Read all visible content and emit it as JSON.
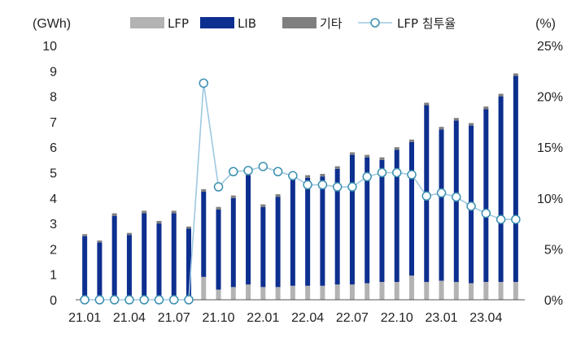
{
  "chart_data": {
    "type": "bar",
    "stacked": true,
    "secondary_line": true,
    "y_left_unit": "(GWh)",
    "y_right_unit": "(%)",
    "ylim_left": [
      0,
      10
    ],
    "ylim_right": [
      0,
      25
    ],
    "y_left_ticks": [
      "0",
      "1",
      "2",
      "3",
      "4",
      "5",
      "6",
      "7",
      "8",
      "9",
      "10"
    ],
    "y_right_ticks": [
      "0%",
      "5%",
      "10%",
      "15%",
      "20%",
      "25%"
    ],
    "x_tick_labels": [
      "21.01",
      "21.04",
      "21.07",
      "21.10",
      "22.01",
      "22.04",
      "22.07",
      "22.10",
      "23.01",
      "23.04"
    ],
    "categories": [
      "21.01",
      "21.02",
      "21.03",
      "21.04",
      "21.05",
      "21.06",
      "21.07",
      "21.08",
      "21.09",
      "21.10",
      "21.11",
      "21.12",
      "22.01",
      "22.02",
      "22.03",
      "22.04",
      "22.05",
      "22.06",
      "22.07",
      "22.08",
      "22.09",
      "22.10",
      "22.11",
      "22.12",
      "23.01",
      "23.02",
      "23.03",
      "23.04",
      "23.05",
      "23.06"
    ],
    "legend": [
      "LFP",
      "LIB",
      "기타",
      "LFP 침투율"
    ],
    "series": [
      {
        "name": "LFP",
        "axis": "left",
        "color": "#b3b3b3",
        "values": [
          0,
          0,
          0,
          0,
          0,
          0,
          0,
          0,
          0.9,
          0.4,
          0.5,
          0.6,
          0.5,
          0.5,
          0.55,
          0.55,
          0.55,
          0.6,
          0.6,
          0.65,
          0.7,
          0.7,
          0.95,
          0.7,
          0.75,
          0.7,
          0.65,
          0.7,
          0.7,
          0.7
        ]
      },
      {
        "name": "LIB",
        "axis": "left",
        "color": "#0d2f8f",
        "values": [
          2.5,
          2.25,
          3.3,
          2.55,
          3.4,
          3.0,
          3.4,
          2.8,
          3.35,
          3.15,
          3.5,
          4.3,
          3.15,
          3.55,
          4.2,
          4.25,
          4.3,
          4.55,
          5.1,
          4.95,
          4.8,
          5.2,
          5.25,
          6.95,
          5.95,
          6.35,
          6.2,
          6.8,
          7.3,
          8.1
        ]
      },
      {
        "name": "기타",
        "axis": "left",
        "color": "#7f7f7f",
        "values": [
          0.08,
          0.08,
          0.1,
          0.08,
          0.1,
          0.1,
          0.1,
          0.08,
          0.1,
          0.1,
          0.1,
          0.1,
          0.1,
          0.1,
          0.1,
          0.1,
          0.1,
          0.1,
          0.1,
          0.1,
          0.1,
          0.1,
          0.1,
          0.1,
          0.1,
          0.1,
          0.1,
          0.1,
          0.1,
          0.1
        ]
      },
      {
        "name": "LFP 침투율",
        "axis": "right",
        "type": "line",
        "color": "#9dc8e0",
        "values": [
          0,
          0,
          0,
          0,
          0,
          0,
          0,
          0,
          21.3,
          11.1,
          12.6,
          12.7,
          13.1,
          12.6,
          12.2,
          11.3,
          11.3,
          11.1,
          11.1,
          12.1,
          12.5,
          12.5,
          12.3,
          10.2,
          10.5,
          10.1,
          9.2,
          8.5,
          7.9,
          7.9
        ]
      }
    ],
    "grid": false,
    "legend_position": "top"
  }
}
